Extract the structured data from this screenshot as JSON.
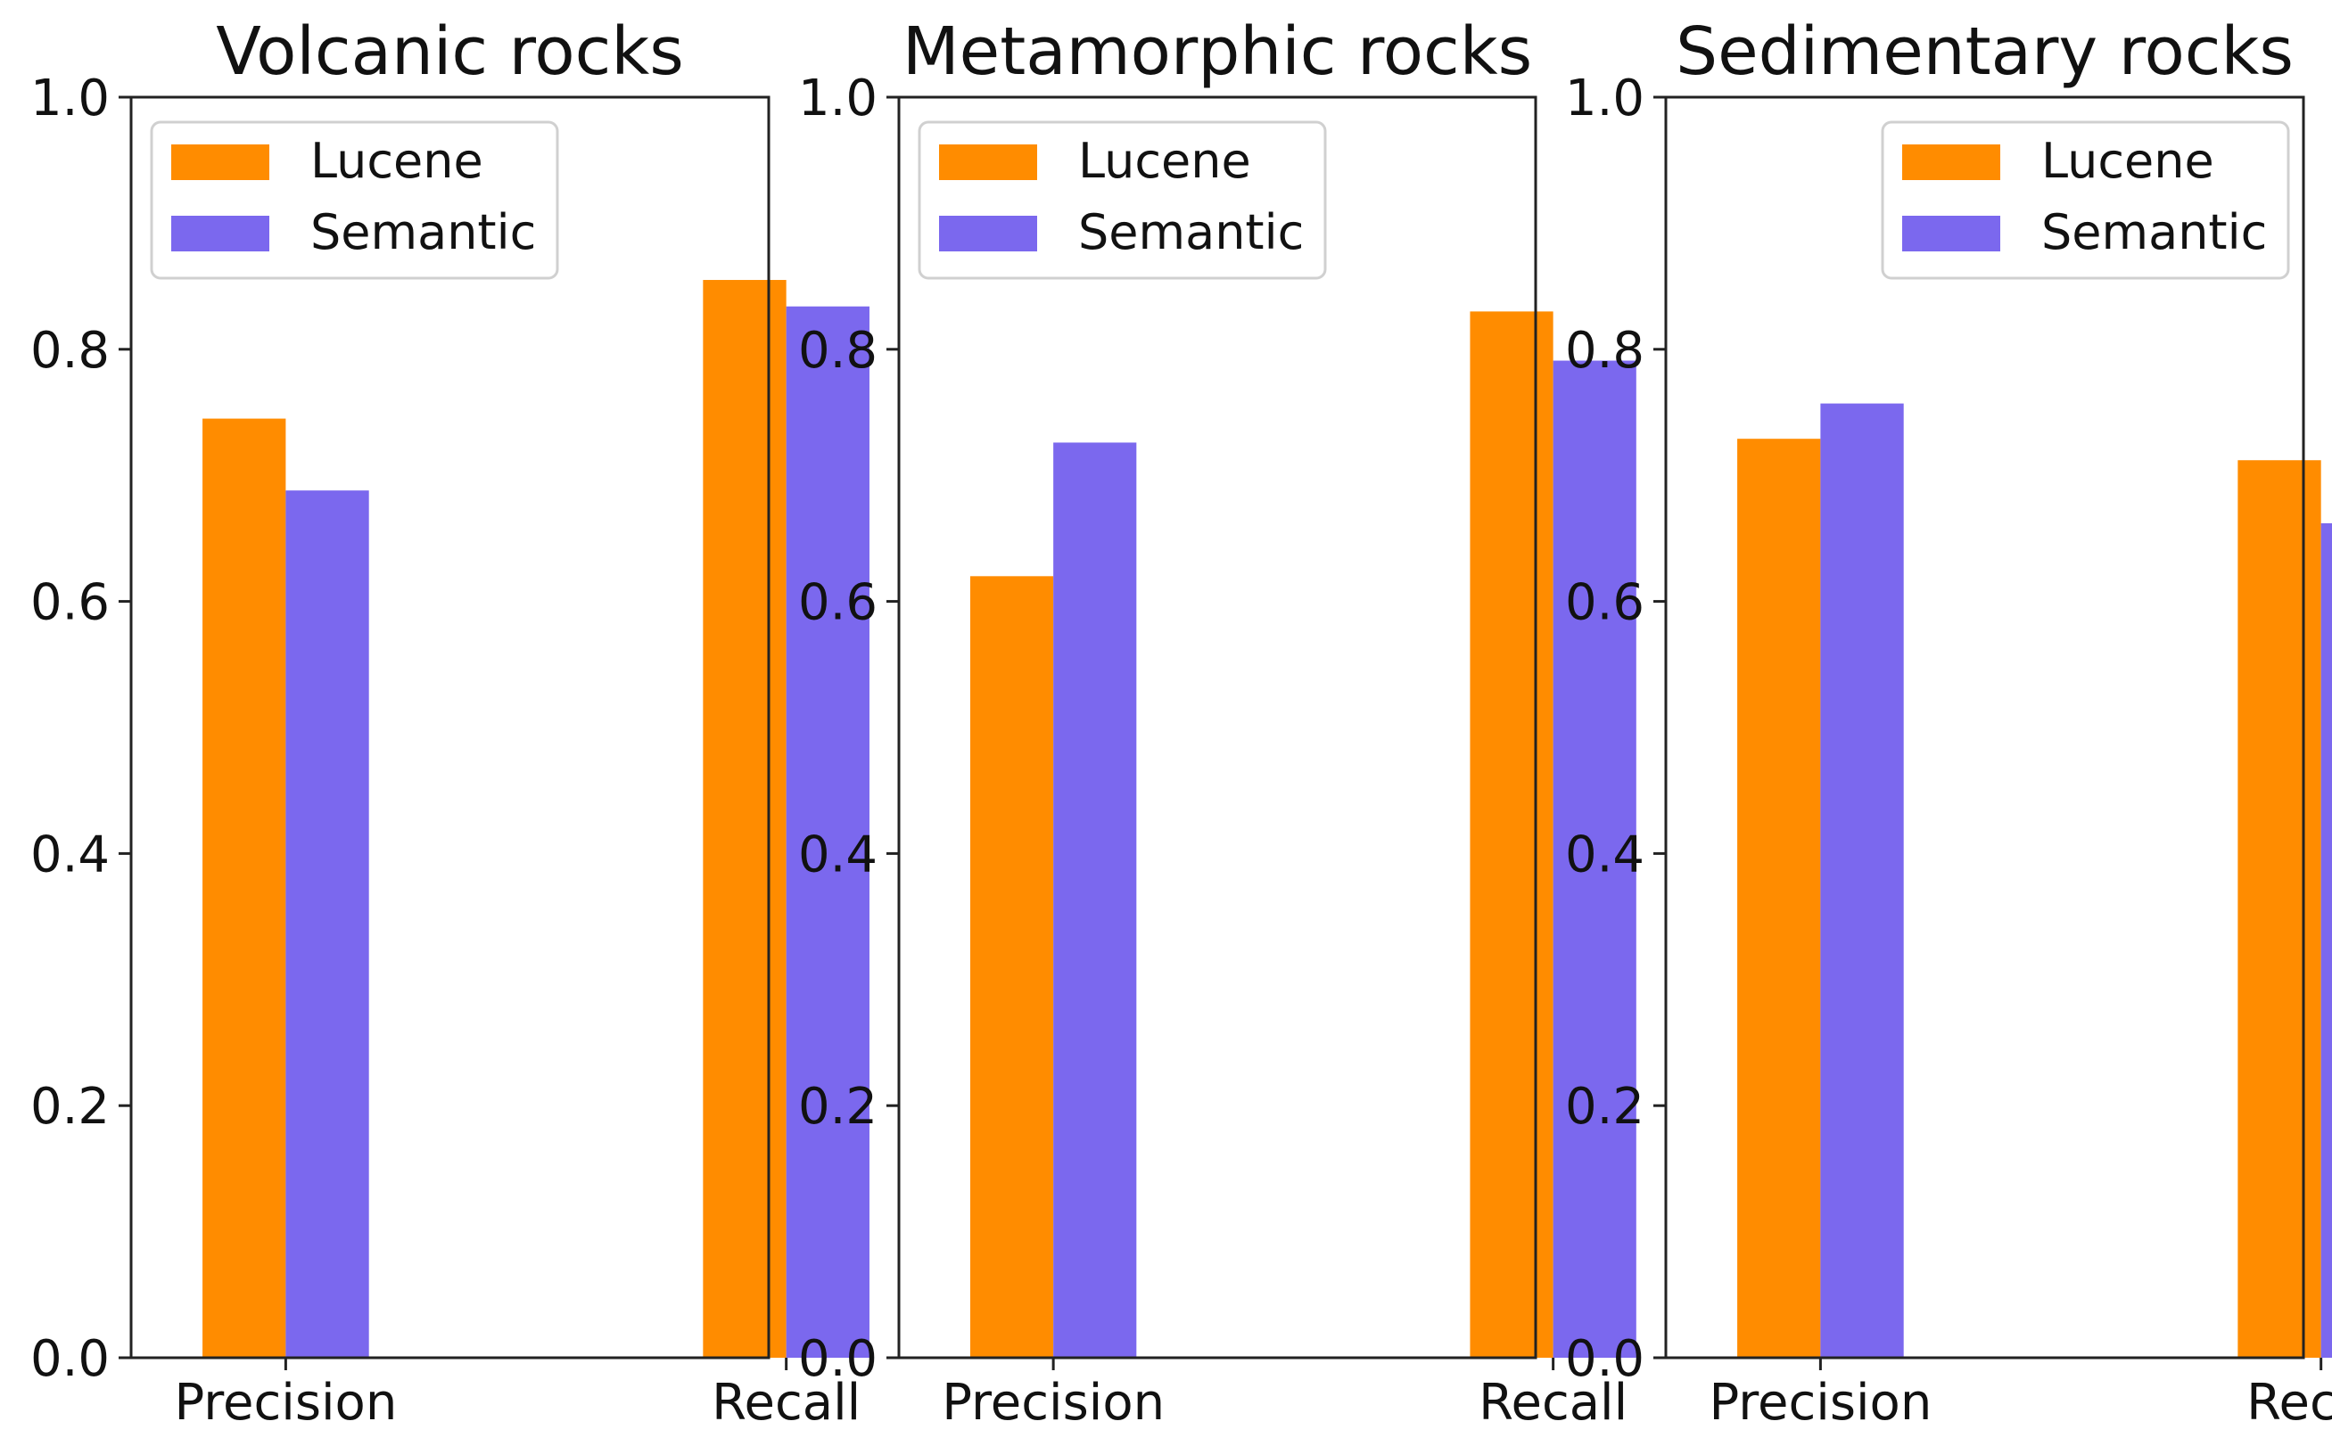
{
  "chart_data": [
    {
      "type": "bar",
      "title": "Volcanic rocks",
      "categories": [
        "Precision",
        "Recall"
      ],
      "series": [
        {
          "name": "Lucene",
          "values": [
            0.745,
            0.855
          ]
        },
        {
          "name": "Semantic",
          "values": [
            0.688,
            0.834
          ]
        }
      ],
      "ylim": [
        0,
        1.0
      ],
      "yticks": [
        "0.0",
        "0.2",
        "0.4",
        "0.6",
        "0.8",
        "1.0"
      ],
      "legend_position": "top-left",
      "grid": false
    },
    {
      "type": "bar",
      "title": "Metamorphic rocks",
      "categories": [
        "Precision",
        "Recall"
      ],
      "series": [
        {
          "name": "Lucene",
          "values": [
            0.62,
            0.83
          ]
        },
        {
          "name": "Semantic",
          "values": [
            0.726,
            0.791
          ]
        }
      ],
      "ylim": [
        0,
        1.0
      ],
      "yticks": [
        "0.0",
        "0.2",
        "0.4",
        "0.6",
        "0.8",
        "1.0"
      ],
      "legend_position": "top-left",
      "grid": false
    },
    {
      "type": "bar",
      "title": "Sedimentary rocks",
      "categories": [
        "Precision",
        "Recall"
      ],
      "series": [
        {
          "name": "Lucene",
          "values": [
            0.729,
            0.712
          ]
        },
        {
          "name": "Semantic",
          "values": [
            0.757,
            0.662
          ]
        }
      ],
      "ylim": [
        0,
        1.0
      ],
      "yticks": [
        "0.0",
        "0.2",
        "0.4",
        "0.6",
        "0.8",
        "1.0"
      ],
      "legend_position": "top-right",
      "grid": false
    }
  ],
  "colors": {
    "Lucene": "#ff8c00",
    "Semantic": "#7b68ee"
  }
}
